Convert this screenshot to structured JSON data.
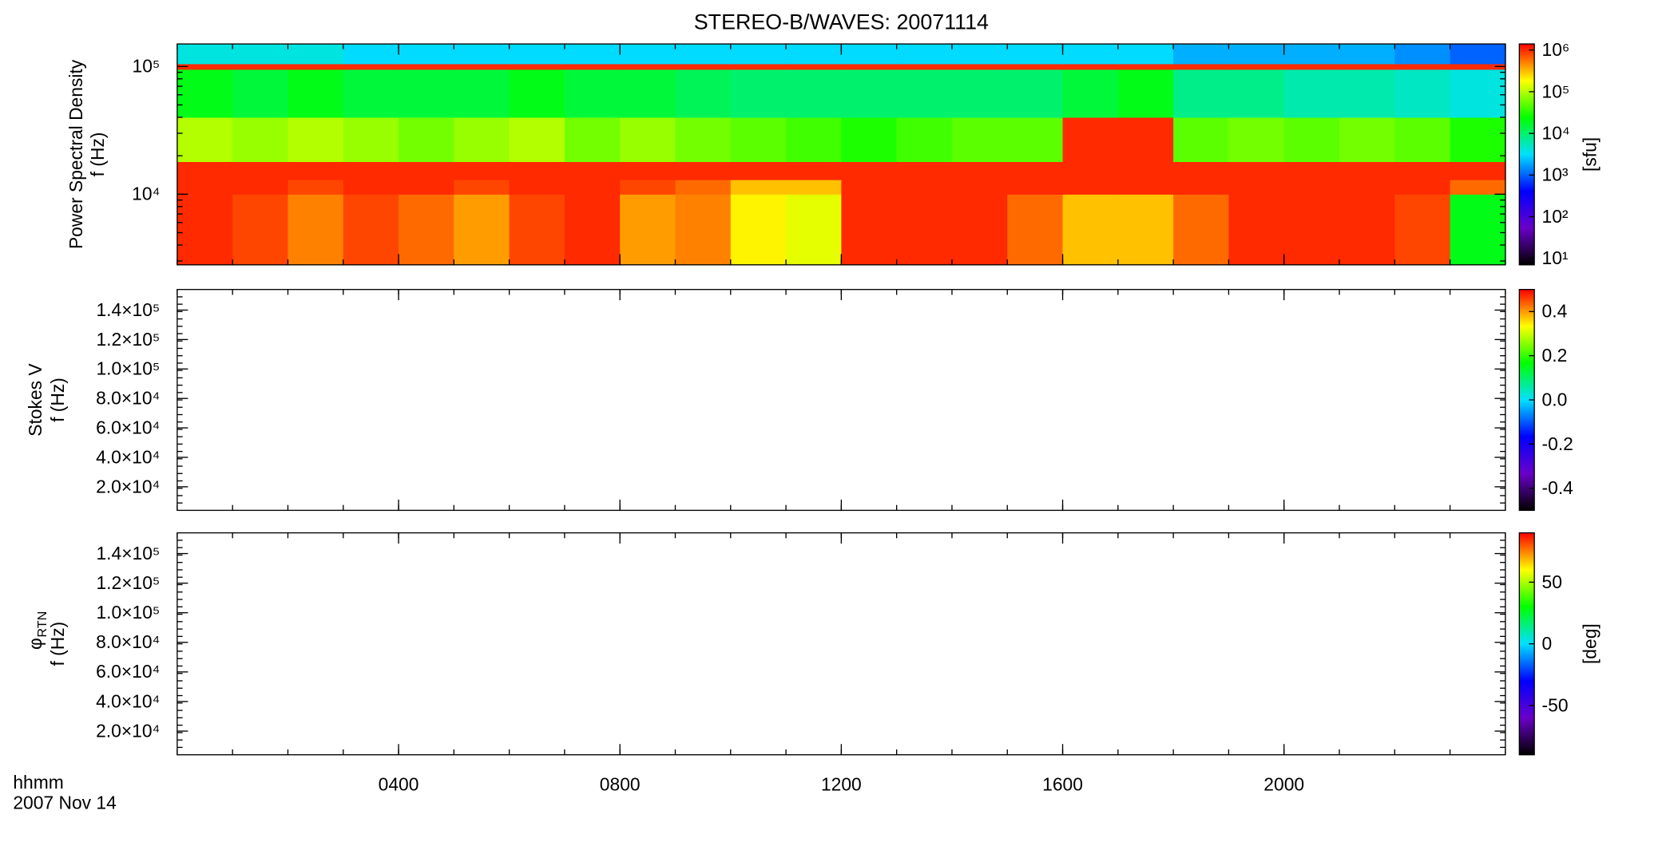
{
  "chart_data": [
    {
      "type": "heatmap",
      "title": "STEREO-B/WAVES: 20071114",
      "ylabel_lines": [
        "Power Spectral Density",
        "f (Hz)"
      ],
      "ylog": true,
      "ylim": [
        2800,
        150000
      ],
      "yticks": [
        {
          "value": 10000,
          "label": "10⁴"
        },
        {
          "value": 100000,
          "label": "10⁵"
        }
      ],
      "xlim": [
        0,
        24
      ],
      "x_bins": [
        0,
        1,
        2,
        3,
        4,
        5,
        6,
        7,
        8,
        9,
        10,
        11,
        12,
        13,
        14,
        15,
        16,
        17,
        18,
        19,
        20,
        21,
        22,
        23,
        24
      ],
      "y_bins": [
        2800,
        10000,
        13000,
        18000,
        40000,
        95000,
        105000,
        150000
      ],
      "values": [
        [
          1000000,
          800000,
          500000,
          800000,
          600000,
          400000,
          800000,
          1000000,
          400000,
          500000,
          200000,
          150000,
          1000000,
          1000000,
          1000000,
          600000,
          300000,
          300000,
          600000,
          1000000,
          1000000,
          1000000,
          800000,
          20000
        ],
        [
          1000000,
          1000000,
          800000,
          1000000,
          1000000,
          800000,
          1000000,
          1000000,
          800000,
          600000,
          300000,
          300000,
          1000000,
          1000000,
          1000000,
          1000000,
          1000000,
          1000000,
          1000000,
          1000000,
          1000000,
          1000000,
          1000000,
          600000
        ],
        [
          1000000,
          1000000,
          1000000,
          1000000,
          1000000,
          1000000,
          1000000,
          1000000,
          1000000,
          1000000,
          1000000,
          1000000,
          1000000,
          1000000,
          1000000,
          1000000,
          1000000,
          1000000,
          1000000,
          1000000,
          1000000,
          1000000,
          1000000,
          1000000
        ],
        [
          100000,
          80000,
          100000,
          80000,
          60000,
          80000,
          100000,
          60000,
          80000,
          60000,
          50000,
          40000,
          30000,
          40000,
          50000,
          50000,
          1000000,
          1000000,
          50000,
          60000,
          50000,
          60000,
          50000,
          30000
        ],
        [
          20000,
          15000,
          20000,
          15000,
          15000,
          15000,
          20000,
          15000,
          15000,
          12000,
          10000,
          10000,
          10000,
          10000,
          10000,
          10000,
          15000,
          20000,
          8000,
          8000,
          6000,
          6000,
          5000,
          4000
        ],
        [
          1000000,
          1000000,
          1000000,
          1000000,
          1000000,
          1000000,
          1000000,
          1000000,
          1000000,
          1000000,
          1000000,
          1000000,
          1000000,
          1000000,
          1000000,
          1000000,
          1000000,
          1000000,
          1000000,
          1000000,
          1000000,
          1000000,
          1000000,
          1000000
        ],
        [
          4000,
          4000,
          4000,
          3000,
          3000,
          3000,
          3000,
          3000,
          3000,
          3000,
          3000,
          3000,
          3000,
          3000,
          3000,
          3000,
          3000,
          3000,
          2000,
          2000,
          2000,
          2000,
          1500,
          1000
        ]
      ],
      "zlog": true,
      "zlim": [
        7,
        1400000
      ],
      "zticks": [
        {
          "value": 10,
          "label": "10¹"
        },
        {
          "value": 100,
          "label": "10²"
        },
        {
          "value": 1000,
          "label": "10³"
        },
        {
          "value": 10000,
          "label": "10⁴"
        },
        {
          "value": 100000,
          "label": "10⁵"
        },
        {
          "value": 1000000,
          "label": "10⁶"
        }
      ],
      "zlabel": "[sfu]",
      "colormap": [
        "#000000",
        "#6a00c8",
        "#0000ff",
        "#00e0ff",
        "#00ff00",
        "#ffff00",
        "#ff0000"
      ]
    },
    {
      "type": "heatmap",
      "ylabel_lines": [
        "Stokes V",
        "f (Hz)"
      ],
      "ylog": false,
      "ylim": [
        4000,
        154000
      ],
      "yticks": [
        {
          "value": 20000,
          "label": "2.0×10⁴"
        },
        {
          "value": 40000,
          "label": "4.0×10⁴"
        },
        {
          "value": 60000,
          "label": "6.0×10⁴"
        },
        {
          "value": 80000,
          "label": "8.0×10⁴"
        },
        {
          "value": 100000,
          "label": "1.0×10⁵"
        },
        {
          "value": 120000,
          "label": "1.2×10⁵"
        },
        {
          "value": 140000,
          "label": "1.4×10⁵"
        }
      ],
      "xlim": [
        0,
        24
      ],
      "zlog": false,
      "zlim": [
        -0.5,
        0.5
      ],
      "zticks": [
        -0.4,
        -0.2,
        {
          "value": 0,
          "label": "0.0"
        },
        0.2,
        0.4
      ],
      "colormap": [
        "#000000",
        "#6a00c8",
        "#0000ff",
        "#00e0ff",
        "#00ff00",
        "#ffff00",
        "#ff0000"
      ]
    },
    {
      "type": "heatmap",
      "ylabel_lines": [
        "φ",
        "f (Hz)"
      ],
      "ylabel_subscript": "RTN",
      "ylog": false,
      "ylim": [
        4000,
        154000
      ],
      "yticks": [
        {
          "value": 20000,
          "label": "2.0×10⁴"
        },
        {
          "value": 40000,
          "label": "4.0×10⁴"
        },
        {
          "value": 60000,
          "label": "6.0×10⁴"
        },
        {
          "value": 80000,
          "label": "8.0×10⁴"
        },
        {
          "value": 100000,
          "label": "1.0×10⁵"
        },
        {
          "value": 120000,
          "label": "1.2×10⁵"
        },
        {
          "value": 140000,
          "label": "1.4×10⁵"
        }
      ],
      "xlim": [
        0,
        24
      ],
      "xticks": [
        {
          "value": 4,
          "label": "0400"
        },
        {
          "value": 8,
          "label": "0800"
        },
        {
          "value": 12,
          "label": "1200"
        },
        {
          "value": 16,
          "label": "1600"
        },
        {
          "value": 20,
          "label": "2000"
        }
      ],
      "xlabel": "hhmm",
      "date": "2007 Nov 14",
      "zlog": false,
      "zlim": [
        -90,
        90
      ],
      "zticks": [
        -50,
        0,
        50
      ],
      "zlabel": "[deg]",
      "colormap": [
        "#000000",
        "#6a00c8",
        "#0000ff",
        "#00e0ff",
        "#00ff00",
        "#ffff00",
        "#ff0000"
      ]
    }
  ]
}
